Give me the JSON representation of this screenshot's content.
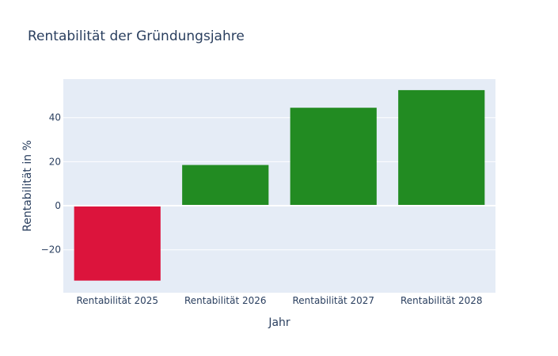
{
  "chart_data": {
    "type": "bar",
    "title": "Rentabilität der Gründungsjahre",
    "xlabel": "Jahr",
    "ylabel": "Rentabilität in %",
    "categories": [
      "Rentabilität 2025",
      "Rentabilität 2026",
      "Rentabilität 2027",
      "Rentabilität 2028"
    ],
    "values": [
      -34,
      18.5,
      44.5,
      52.5
    ],
    "colors": [
      "#dc143c",
      "#228b22",
      "#228b22",
      "#228b22"
    ],
    "ylim": [
      -39.5,
      57.5
    ],
    "yticks": [
      -20,
      0,
      20,
      40
    ],
    "ytick_labels": [
      "−20",
      "0",
      "20",
      "40"
    ],
    "grid": true,
    "plot_background": "#e5ecf6"
  }
}
